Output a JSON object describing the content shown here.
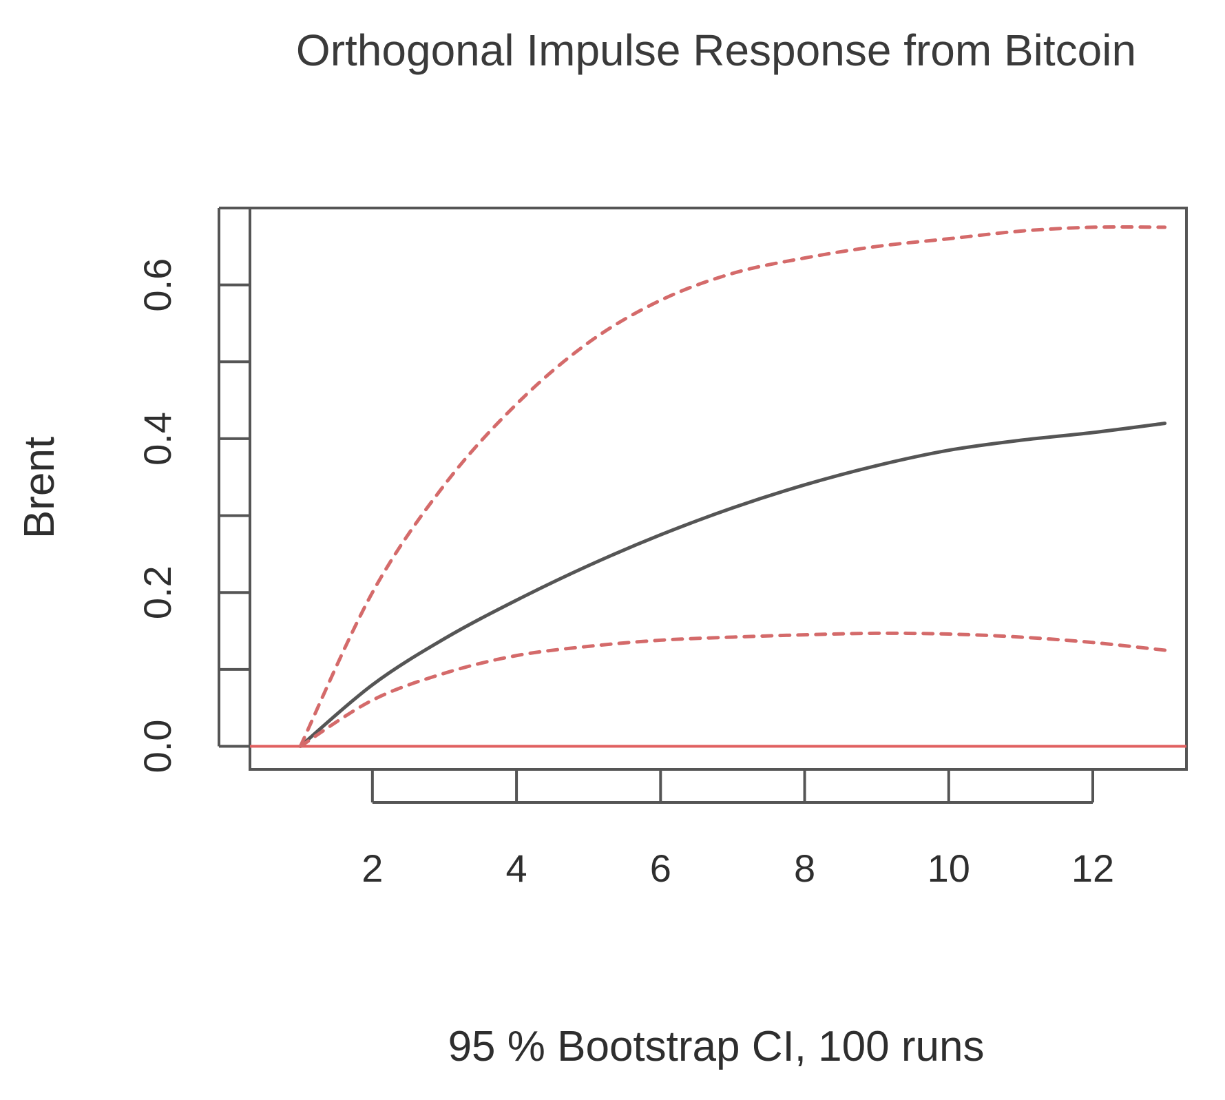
{
  "chart_data": {
    "type": "line",
    "title": "Orthogonal Impulse Response from Bitcoin",
    "xlabel": "95 % Bootstrap CI,  100 runs",
    "ylabel": "Brent",
    "xlim": [
      0.3,
      13.3
    ],
    "ylim": [
      -0.03,
      0.7
    ],
    "x_ticks": [
      2,
      4,
      6,
      8,
      10,
      12
    ],
    "y_ticks": [
      0.0,
      0.1,
      0.2,
      0.3,
      0.4,
      0.5,
      0.6,
      0.7
    ],
    "y_tick_labels": [
      {
        "value": 0.0,
        "label": "0.0"
      },
      {
        "value": 0.2,
        "label": "0.2"
      },
      {
        "value": 0.4,
        "label": "0.4"
      },
      {
        "value": 0.6,
        "label": "0.6"
      }
    ],
    "grid": false,
    "zero_line": {
      "value": 0,
      "color": "#e06060"
    },
    "x": [
      1,
      2,
      3,
      4,
      5,
      6,
      7,
      8,
      9,
      10,
      11,
      12,
      13
    ],
    "series": [
      {
        "role": "irf",
        "color": "#555555",
        "style": "solid",
        "values": [
          0.0,
          0.08,
          0.14,
          0.19,
          0.235,
          0.275,
          0.31,
          0.34,
          0.365,
          0.385,
          0.398,
          0.408,
          0.42
        ]
      },
      {
        "role": "upper",
        "color": "#d46a6a",
        "style": "dashed",
        "values": [
          0.0,
          0.2,
          0.34,
          0.445,
          0.525,
          0.58,
          0.615,
          0.635,
          0.65,
          0.66,
          0.67,
          0.675,
          0.675
        ]
      },
      {
        "role": "lower",
        "color": "#d46a6a",
        "style": "dashed",
        "values": [
          0.0,
          0.06,
          0.095,
          0.118,
          0.13,
          0.138,
          0.142,
          0.145,
          0.147,
          0.146,
          0.142,
          0.135,
          0.125
        ]
      }
    ]
  }
}
